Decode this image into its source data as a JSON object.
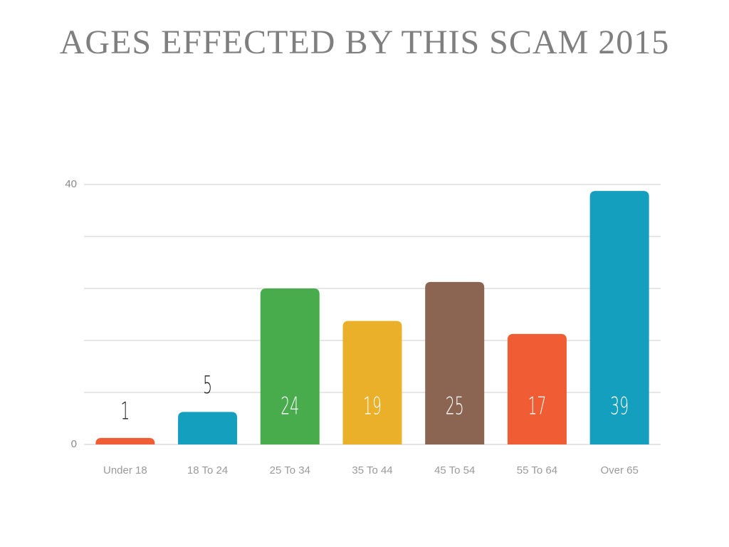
{
  "chart_data": {
    "type": "bar",
    "title": "AGES EFFECTED BY THIS SCAM 2015",
    "categories": [
      "Under 18",
      "18 To 24",
      "25 To 34",
      "35 To 44",
      "45 To 54",
      "55 To 64",
      "Over 65"
    ],
    "values": [
      1,
      5,
      24,
      19,
      25,
      17,
      39
    ],
    "colors": [
      "#f05d35",
      "#139fbd",
      "#48ac4c",
      "#ebb02a",
      "#8b6552",
      "#f05d35",
      "#139fbd"
    ],
    "ylim": [
      0,
      40
    ],
    "yticks": [
      0,
      40
    ],
    "grid_lines": [
      0,
      8,
      16,
      24,
      32,
      40
    ],
    "grid": true
  }
}
